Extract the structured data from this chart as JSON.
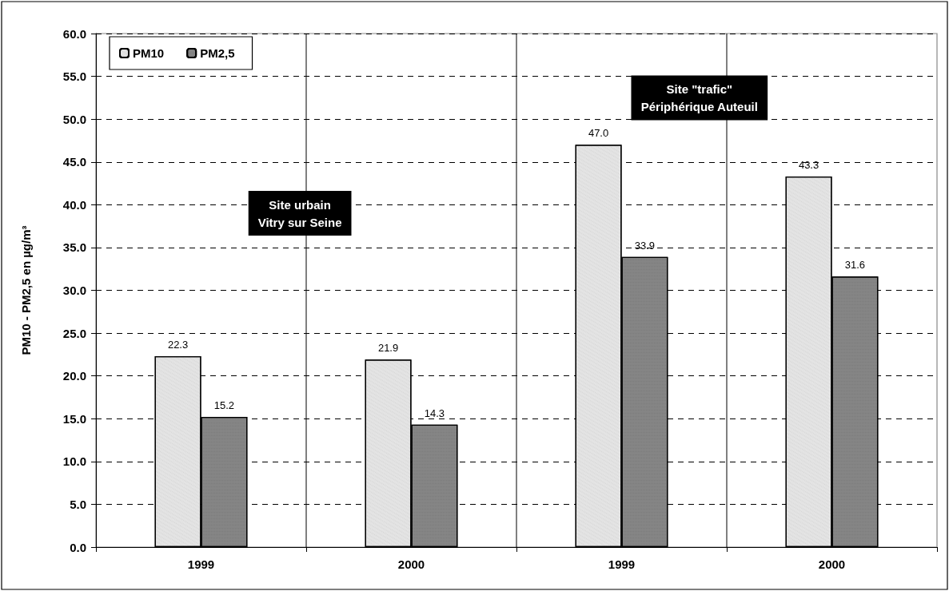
{
  "chart_data": {
    "type": "bar",
    "ylabel": "PM10 - PM2,5 en µg/m³",
    "categories": [
      "1999",
      "2000",
      "1999",
      "2000"
    ],
    "series": [
      {
        "name": "PM10",
        "color": "#e4e4e4",
        "values": [
          22.3,
          21.9,
          47.0,
          43.3
        ],
        "value_labels": [
          "22.3",
          "21.9",
          "47.0",
          "43.3"
        ]
      },
      {
        "name": "PM2,5",
        "color": "#858585",
        "values": [
          15.2,
          14.3,
          33.9,
          31.6
        ],
        "value_labels": [
          "15.2",
          "14.3",
          "33.9",
          "31.6"
        ]
      }
    ],
    "ylim": [
      0,
      60
    ],
    "yticks": [
      {
        "value": 0,
        "label": "0.0"
      },
      {
        "value": 5,
        "label": "5.0"
      },
      {
        "value": 10,
        "label": "10.0"
      },
      {
        "value": 15,
        "label": "15.0"
      },
      {
        "value": 20,
        "label": "20.0"
      },
      {
        "value": 25,
        "label": "25.0"
      },
      {
        "value": 30,
        "label": "30.0"
      },
      {
        "value": 35,
        "label": "35.0"
      },
      {
        "value": 40,
        "label": "40.0"
      },
      {
        "value": 45,
        "label": "45.0"
      },
      {
        "value": 50,
        "label": "50.0"
      },
      {
        "value": 55,
        "label": "55.0"
      },
      {
        "value": 60,
        "label": "60.0"
      }
    ],
    "annotations": [
      "Site urbain\nVitry sur Seine",
      "Site \"trafic\"\nPériphérique Auteuil"
    ],
    "grid": true,
    "legend": "top left"
  }
}
